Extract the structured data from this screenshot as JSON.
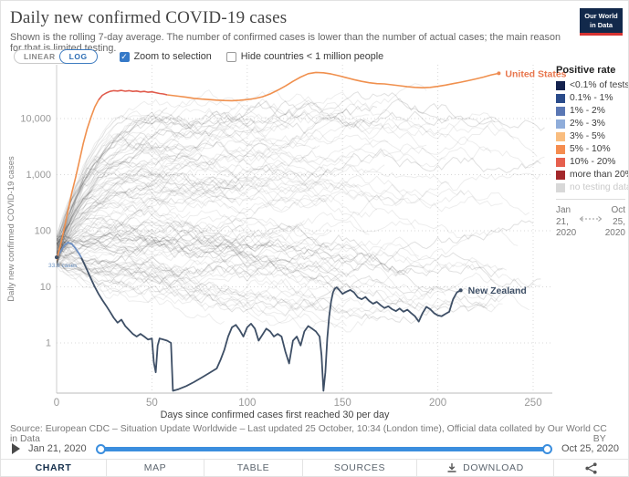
{
  "header": {
    "title": "Daily new confirmed COVID-19 cases",
    "subtitle": "Shown is the rolling 7-day average. The number of confirmed cases is lower than the number of actual cases; the main reason for that is limited testing.",
    "logo_lines": [
      "Our World",
      "in Data"
    ]
  },
  "controls": {
    "linear_label": "LINEAR",
    "log_label": "LOG",
    "zoom_label": "Zoom to selection",
    "zoom_checked": true,
    "hide_label": "Hide countries < 1 million people",
    "hide_checked": false
  },
  "legend": {
    "title": "Positive rate",
    "items": [
      {
        "label": "<0.1% of tests",
        "color": "#14224e",
        "muted": false
      },
      {
        "label": "0.1% - 1%",
        "color": "#2a4b8a",
        "muted": false
      },
      {
        "label": "1% - 2%",
        "color": "#5a77b4",
        "muted": false
      },
      {
        "label": "2% - 3%",
        "color": "#8fadda",
        "muted": false
      },
      {
        "label": "3% - 5%",
        "color": "#f9bd7f",
        "muted": false
      },
      {
        "label": "5% - 10%",
        "color": "#f58c4f",
        "muted": false
      },
      {
        "label": "10% - 20%",
        "color": "#e6604e",
        "muted": false
      },
      {
        "label": "more than 20%",
        "color": "#a3282b",
        "muted": false
      },
      {
        "label": "no testing data",
        "color": "#d8d8d8",
        "muted": true
      }
    ],
    "range": {
      "start": [
        "Jan",
        "21,",
        "2020"
      ],
      "end": [
        "Oct",
        "25,",
        "2020"
      ]
    }
  },
  "chart_data": {
    "type": "line",
    "title": "Daily new confirmed COVID-19 cases",
    "xlabel": "Days since confirmed cases first reached 30 per day",
    "ylabel": "Daily new confirmed COVID-19 cases",
    "y_scale": "log",
    "xlim": [
      0,
      260
    ],
    "ylim": [
      0.13,
      70000
    ],
    "grid": "dotted",
    "x_ticks": [
      0,
      50,
      100,
      150,
      200,
      250
    ],
    "y_ticks": [
      {
        "label": "10,000",
        "value": 10000
      },
      {
        "label": "1,000",
        "value": 1000
      },
      {
        "label": "100",
        "value": 100
      },
      {
        "label": "10",
        "value": 10
      },
      {
        "label": "1",
        "value": 1
      }
    ],
    "series": [
      {
        "name": "United States",
        "label_color": "#e8764d",
        "color_segments": [
          {
            "from": 0,
            "to": 22,
            "color": "#f0904e"
          },
          {
            "from": 22,
            "to": 58,
            "color": "#e05a4b"
          },
          {
            "from": 58,
            "to": 232,
            "color": "#f0904e"
          }
        ],
        "points": [
          [
            0,
            30
          ],
          [
            2,
            55
          ],
          [
            4,
            110
          ],
          [
            6,
            230
          ],
          [
            8,
            480
          ],
          [
            10,
            900
          ],
          [
            12,
            1800
          ],
          [
            14,
            3600
          ],
          [
            16,
            6500
          ],
          [
            18,
            10500
          ],
          [
            20,
            16000
          ],
          [
            22,
            21500
          ],
          [
            24,
            26000
          ],
          [
            26,
            28500
          ],
          [
            28,
            30500
          ],
          [
            30,
            31500
          ],
          [
            32,
            31000
          ],
          [
            34,
            31800
          ],
          [
            36,
            30800
          ],
          [
            38,
            31500
          ],
          [
            40,
            30500
          ],
          [
            42,
            31000
          ],
          [
            44,
            30000
          ],
          [
            46,
            30500
          ],
          [
            48,
            29500
          ],
          [
            50,
            30000
          ],
          [
            52,
            29000
          ],
          [
            54,
            28000
          ],
          [
            56,
            27500
          ],
          [
            58,
            26500
          ],
          [
            60,
            26000
          ],
          [
            64,
            25000
          ],
          [
            68,
            24000
          ],
          [
            72,
            23000
          ],
          [
            76,
            22300
          ],
          [
            80,
            21800
          ],
          [
            84,
            21300
          ],
          [
            88,
            21000
          ],
          [
            92,
            20800
          ],
          [
            96,
            21200
          ],
          [
            100,
            21800
          ],
          [
            104,
            22800
          ],
          [
            108,
            24500
          ],
          [
            112,
            27500
          ],
          [
            116,
            32000
          ],
          [
            120,
            38000
          ],
          [
            124,
            46000
          ],
          [
            128,
            55000
          ],
          [
            132,
            63000
          ],
          [
            136,
            66500
          ],
          [
            140,
            65500
          ],
          [
            144,
            62500
          ],
          [
            148,
            58000
          ],
          [
            152,
            53500
          ],
          [
            156,
            49500
          ],
          [
            160,
            46000
          ],
          [
            164,
            43500
          ],
          [
            168,
            42000
          ],
          [
            172,
            41500
          ],
          [
            176,
            40000
          ],
          [
            180,
            38500
          ],
          [
            184,
            37000
          ],
          [
            188,
            36000
          ],
          [
            192,
            35500
          ],
          [
            196,
            36000
          ],
          [
            200,
            37500
          ],
          [
            204,
            39500
          ],
          [
            208,
            42000
          ],
          [
            212,
            44500
          ],
          [
            216,
            47500
          ],
          [
            220,
            51000
          ],
          [
            224,
            55000
          ],
          [
            228,
            60000
          ],
          [
            232,
            64000
          ]
        ]
      },
      {
        "name": "New Zealand",
        "label_color": "#3e4f66",
        "start_annotation": "33.6 cases",
        "start_annotation_color": "#6b93c4",
        "color_segments": [
          {
            "from": 0,
            "to": 13,
            "color": "#6d8fc2"
          },
          {
            "from": 13,
            "to": 212,
            "color": "#3e4f66"
          }
        ],
        "points": [
          [
            0,
            33.6
          ],
          [
            2,
            42
          ],
          [
            4,
            55
          ],
          [
            6,
            62
          ],
          [
            8,
            58
          ],
          [
            10,
            48
          ],
          [
            12,
            38
          ],
          [
            13,
            33
          ],
          [
            14,
            28
          ],
          [
            16,
            20
          ],
          [
            18,
            14
          ],
          [
            20,
            10
          ],
          [
            22,
            7.5
          ],
          [
            24,
            5.8
          ],
          [
            26,
            4.6
          ],
          [
            28,
            3.6
          ],
          [
            30,
            2.8
          ],
          [
            32,
            2.3
          ],
          [
            34,
            2.6
          ],
          [
            36,
            2.0
          ],
          [
            38,
            1.7
          ],
          [
            40,
            1.45
          ],
          [
            42,
            1.3
          ],
          [
            44,
            1.45
          ],
          [
            46,
            1.3
          ],
          [
            48,
            1.15
          ],
          [
            50,
            1.2
          ],
          [
            51,
            0.45
          ],
          [
            52,
            0.3
          ],
          [
            53,
            0.9
          ],
          [
            54,
            1.2
          ],
          [
            56,
            1.15
          ],
          [
            58,
            1.1
          ],
          [
            60,
            1.0
          ],
          [
            61,
            0.14
          ],
          [
            64,
            0.15
          ],
          [
            68,
            0.17
          ],
          [
            72,
            0.2
          ],
          [
            76,
            0.24
          ],
          [
            80,
            0.29
          ],
          [
            84,
            0.35
          ],
          [
            86,
            0.5
          ],
          [
            88,
            0.75
          ],
          [
            90,
            1.3
          ],
          [
            92,
            1.9
          ],
          [
            94,
            2.1
          ],
          [
            96,
            1.7
          ],
          [
            98,
            1.3
          ],
          [
            100,
            1.9
          ],
          [
            102,
            2.2
          ],
          [
            104,
            1.8
          ],
          [
            106,
            1.1
          ],
          [
            108,
            1.4
          ],
          [
            110,
            1.8
          ],
          [
            112,
            1.6
          ],
          [
            114,
            1.3
          ],
          [
            116,
            1.45
          ],
          [
            118,
            1.3
          ],
          [
            120,
            0.7
          ],
          [
            122,
            0.43
          ],
          [
            124,
            1.1
          ],
          [
            126,
            1.3
          ],
          [
            128,
            0.9
          ],
          [
            130,
            1.6
          ],
          [
            132,
            2.0
          ],
          [
            134,
            1.8
          ],
          [
            136,
            1.6
          ],
          [
            138,
            1.3
          ],
          [
            139,
            0.6
          ],
          [
            140,
            0.14
          ],
          [
            141,
            0.3
          ],
          [
            142,
            1.2
          ],
          [
            143,
            3
          ],
          [
            144,
            5.5
          ],
          [
            145,
            8
          ],
          [
            146,
            9.3
          ],
          [
            147,
            9.8
          ],
          [
            148,
            9.0
          ],
          [
            150,
            7.5
          ],
          [
            152,
            8.2
          ],
          [
            154,
            8.8
          ],
          [
            156,
            8.0
          ],
          [
            158,
            6.5
          ],
          [
            160,
            6.0
          ],
          [
            162,
            6.6
          ],
          [
            164,
            5.6
          ],
          [
            166,
            5.0
          ],
          [
            168,
            5.4
          ],
          [
            170,
            4.7
          ],
          [
            172,
            4.2
          ],
          [
            174,
            4.5
          ],
          [
            176,
            4.0
          ],
          [
            178,
            3.7
          ],
          [
            180,
            4.1
          ],
          [
            182,
            3.6
          ],
          [
            184,
            3.9
          ],
          [
            186,
            3.4
          ],
          [
            188,
            3.0
          ],
          [
            190,
            2.4
          ],
          [
            192,
            3.4
          ],
          [
            194,
            4.4
          ],
          [
            196,
            4.0
          ],
          [
            198,
            3.4
          ],
          [
            200,
            3.1
          ],
          [
            202,
            3.0
          ],
          [
            204,
            3.3
          ],
          [
            206,
            3.6
          ],
          [
            208,
            6.0
          ],
          [
            210,
            8.0
          ],
          [
            212,
            8.7
          ]
        ]
      }
    ],
    "background_series": {
      "count": 115,
      "seed": 20201025,
      "color": "rgba(0,0,0,0.07)",
      "color_dark": "rgba(0,0,0,0.12)"
    }
  },
  "footer": {
    "source": "Source: European CDC – Situation Update Worldwide – Last updated 25 October, 10:34 (London time), Official data collated by Our World in Data",
    "license": "CC BY"
  },
  "timeline": {
    "start": "Jan 21, 2020",
    "end": "Oct 25, 2020"
  },
  "tabs": [
    {
      "label": "CHART",
      "active": true
    },
    {
      "label": "MAP",
      "active": false
    },
    {
      "label": "TABLE",
      "active": false
    },
    {
      "label": "SOURCES",
      "active": false
    },
    {
      "label": "DOWNLOAD",
      "active": false
    }
  ],
  "colors": {
    "accent_blue": "#3b8ede",
    "navy": "#12294b",
    "logo_red": "#d63231",
    "tab_active": "#16304d"
  }
}
